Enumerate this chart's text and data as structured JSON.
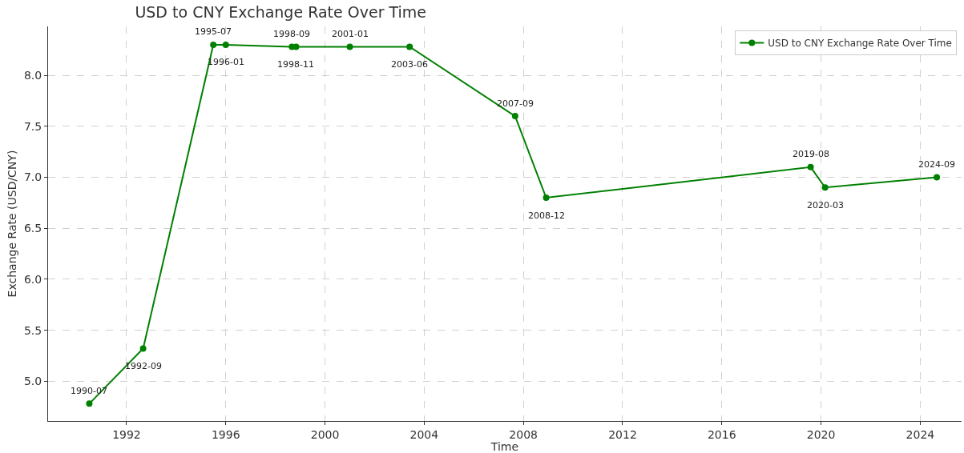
{
  "chart_data": {
    "type": "line",
    "title": "USD to CNY Exchange Rate Over Time",
    "xlabel": "Time",
    "ylabel": "Exchange Rate (USD/CNY)",
    "x": [
      "1990-07",
      "1992-09",
      "1995-07",
      "1996-01",
      "1998-09",
      "1998-11",
      "2001-01",
      "2003-06",
      "2007-09",
      "2008-12",
      "2019-08",
      "2020-03",
      "2024-09"
    ],
    "series": [
      {
        "name": "USD to CNY Exchange Rate Over Time",
        "color": "#008000",
        "values": [
          4.78,
          5.32,
          8.3,
          8.3,
          8.28,
          8.28,
          8.28,
          8.28,
          7.6,
          6.8,
          7.1,
          6.9,
          7.0
        ]
      }
    ],
    "annotations": [
      {
        "text": "1990-07",
        "x": "1990-07",
        "y": 4.78
      },
      {
        "text": "1992-09",
        "x": "1992-09",
        "y": 5.32
      },
      {
        "text": "1995-07",
        "x": "1995-07",
        "y": 8.3
      },
      {
        "text": "1996-01",
        "x": "1996-01",
        "y": 8.3
      },
      {
        "text": "1998-09",
        "x": "1998-09",
        "y": 8.28
      },
      {
        "text": "1998-11",
        "x": "1998-11",
        "y": 8.28
      },
      {
        "text": "2001-01",
        "x": "2001-01",
        "y": 8.28
      },
      {
        "text": "2003-06",
        "x": "2003-06",
        "y": 8.28
      },
      {
        "text": "2007-09",
        "x": "2007-09",
        "y": 7.6
      },
      {
        "text": "2008-12",
        "x": "2008-12",
        "y": 6.8
      },
      {
        "text": "2019-08",
        "x": "2019-08",
        "y": 7.1
      },
      {
        "text": "2020-03",
        "x": "2020-03",
        "y": 6.9
      },
      {
        "text": "2024-09",
        "x": "2024-09",
        "y": 7.0
      }
    ],
    "xlim": [
      "1988-11",
      "2025-09"
    ],
    "xticks": [
      {
        "value": "1992",
        "label": "1992"
      },
      {
        "value": "1996",
        "label": "1996"
      },
      {
        "value": "2000",
        "label": "2000"
      },
      {
        "value": "2004",
        "label": "2004"
      },
      {
        "value": "2008",
        "label": "2008"
      },
      {
        "value": "2012",
        "label": "2012"
      },
      {
        "value": "2016",
        "label": "2016"
      },
      {
        "value": "2020",
        "label": "2020"
      },
      {
        "value": "2024",
        "label": "2024"
      }
    ],
    "ylim": [
      4.61,
      8.48
    ],
    "yticks": [
      {
        "value": 5.0,
        "label": "5.0"
      },
      {
        "value": 5.5,
        "label": "5.5"
      },
      {
        "value": 6.0,
        "label": "6.0"
      },
      {
        "value": 6.5,
        "label": "6.5"
      },
      {
        "value": 7.0,
        "label": "7.0"
      },
      {
        "value": 7.5,
        "label": "7.5"
      },
      {
        "value": 8.0,
        "label": "8.0"
      }
    ],
    "grid": true,
    "legend": "top right",
    "marker": "circle",
    "line_style": "solid"
  }
}
